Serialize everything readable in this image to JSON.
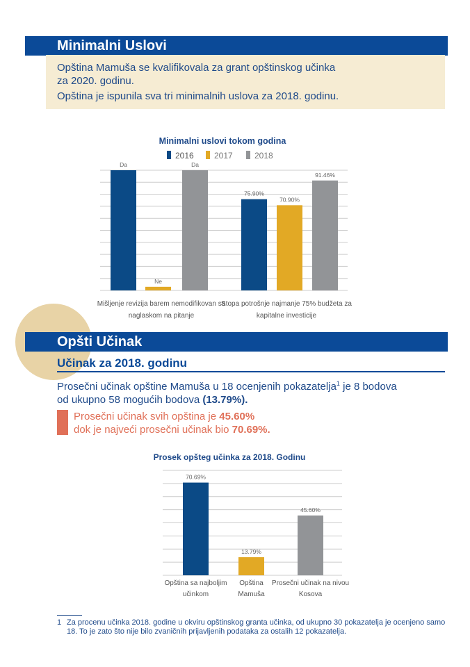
{
  "section1": {
    "title": "Minimalni Uslovi",
    "line1": "Opština Mamuša se kvalifikovala za grant opštinskog učinka",
    "line2": "za 2020. godinu.",
    "line3": "Opština je ispunila sva tri minimalnih uslova za 2018. godinu."
  },
  "chart1": {
    "title": "Minimalni uslovi tokom godina",
    "legend": [
      "2016",
      "2017",
      "2018"
    ],
    "colors": [
      "#0b4a86",
      "#e2a925",
      "#929497"
    ],
    "groups": [
      {
        "label_line1": "Mišljenje revizija barem nemodifikovan sa",
        "label_line2": "naglaskom na pitanje",
        "data_labels": [
          "Da",
          "Ne",
          "Da"
        ]
      },
      {
        "label_line1": "Stopa potrošnje najmanje 75% budžeta za",
        "label_line2": "kapitalne investicije",
        "data_labels": [
          "75.90%",
          "70.90%",
          "91.46%"
        ]
      }
    ]
  },
  "section2": {
    "title": "Opšti Učinak",
    "subtitle": "Učinak za 2018. godinu",
    "para_a": "Prosečni učinak opštine Mamuša u 18 ocenjenih pokazatelja",
    "para_sup": "1",
    "para_b": " je 8 bodova",
    "para_c": "od ukupno 58 mogućih bodova ",
    "para_bold": "(13.79%).",
    "callout_a": "Prosečni učinak svih opština je ",
    "callout_a_bold": "45.60%",
    "callout_b": "dok je najveći prosečni učinak bio ",
    "callout_b_bold": "70.69%."
  },
  "chart2": {
    "title": "Prosek opšteg učinka za 2018. Godinu",
    "bars": [
      {
        "label_line1": "Opština sa najboljim",
        "label_line2": "učinkom",
        "value_label": "70.69%"
      },
      {
        "label_line1": "Opština",
        "label_line2": "Mamuša",
        "value_label": "13.79%"
      },
      {
        "label_line1": "Prosečni učinak na nivou",
        "label_line2": "Kosova",
        "value_label": "45.60%"
      }
    ],
    "colors": [
      "#0b4a86",
      "#e2a925",
      "#929497"
    ]
  },
  "chart_data": [
    {
      "type": "bar",
      "title": "Minimalni uslovi tokom godina",
      "categories": [
        "Mišljenje revizija barem nemodifikovan sa naglaskom na pitanje",
        "Stopa potrošnje najmanje 75% budžeta za kapitalne investicije"
      ],
      "series": [
        {
          "name": "2016",
          "values": [
            100,
            75.9
          ]
        },
        {
          "name": "2017",
          "values": [
            3,
            70.9
          ]
        },
        {
          "name": "2018",
          "values": [
            100,
            91.46
          ]
        }
      ],
      "ylim": [
        0,
        100
      ],
      "grid": true,
      "legend": "top"
    },
    {
      "type": "bar",
      "title": "Prosek opšteg učinka za 2018. Godinu",
      "categories": [
        "Opština sa najboljim učinkom",
        "Opština Mamuša",
        "Prosečni učinak na nivou Kosova"
      ],
      "values": [
        70.69,
        13.79,
        45.6
      ],
      "ylim": [
        0,
        80
      ],
      "grid": true
    }
  ],
  "footnote": {
    "num": "1",
    "text": "Za procenu učinka 2018. godine u okviru opštinskog granta učinka, od ukupno 30 pokazatelja je ocenjeno samo 18. To je zato što nije bilo zvaničnih prijavljenih podataka za ostalih 12 pokazatelja."
  }
}
